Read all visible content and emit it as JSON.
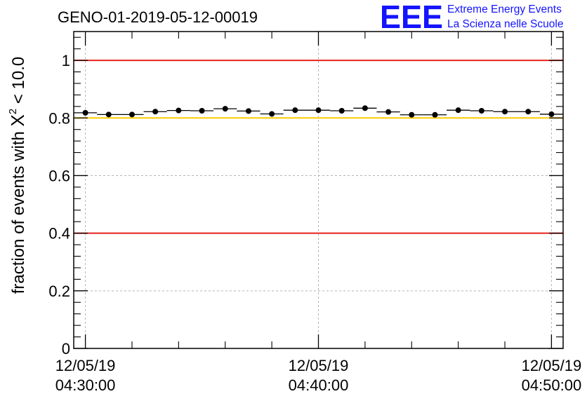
{
  "chart_data": {
    "type": "scatter",
    "title": "GENO-01-2019-05-12-00019",
    "ylabel": "fraction of events with χ² < 10.0",
    "ylabel_parts": {
      "prefix": "fraction of events with ",
      "symbol": "X",
      "superscript": "2",
      "suffix": " < 10.0"
    },
    "xlim": [
      "2019-05-12 04:29:30",
      "2019-05-12 04:50:30"
    ],
    "ylim": [
      0,
      1.1
    ],
    "x_ticks": [
      {
        "t": "2019-05-12 04:30:00",
        "date": "12/05/19",
        "time": "04:30:00"
      },
      {
        "t": "2019-05-12 04:40:00",
        "date": "12/05/19",
        "time": "04:40:00"
      },
      {
        "t": "2019-05-12 04:50:00",
        "date": "12/05/19",
        "time": "04:50:00"
      }
    ],
    "y_ticks": [
      0,
      0.2,
      0.4,
      0.6,
      0.8,
      1
    ],
    "y_tick_labels": [
      "0",
      "0.2",
      "0.4",
      "0.6",
      "0.8",
      "1"
    ],
    "grid": true,
    "reference_lines": [
      {
        "y": 1.0,
        "color": "#e8221b"
      },
      {
        "y": 0.4,
        "color": "#e8221b"
      },
      {
        "y": 0.8,
        "color": "#ffcc00"
      }
    ],
    "bin_width_minutes": 1,
    "series": [
      {
        "marker": "circle",
        "color": "#000000",
        "x": [
          "04:30:00",
          "04:31:00",
          "04:32:00",
          "04:33:00",
          "04:34:00",
          "04:35:00",
          "04:36:00",
          "04:37:00",
          "04:38:00",
          "04:39:00",
          "04:40:00",
          "04:41:00",
          "04:42:00",
          "04:43:00",
          "04:44:00",
          "04:45:00",
          "04:46:00",
          "04:47:00",
          "04:48:00",
          "04:49:00",
          "04:50:00"
        ],
        "y": [
          0.818,
          0.812,
          0.812,
          0.822,
          0.826,
          0.825,
          0.832,
          0.824,
          0.814,
          0.827,
          0.827,
          0.825,
          0.834,
          0.821,
          0.811,
          0.811,
          0.827,
          0.825,
          0.822,
          0.822,
          0.813
        ]
      }
    ]
  },
  "logo": {
    "mark": "EEE",
    "line1": "Extreme Energy Events",
    "line2": "La Scienza nelle Scuole"
  }
}
